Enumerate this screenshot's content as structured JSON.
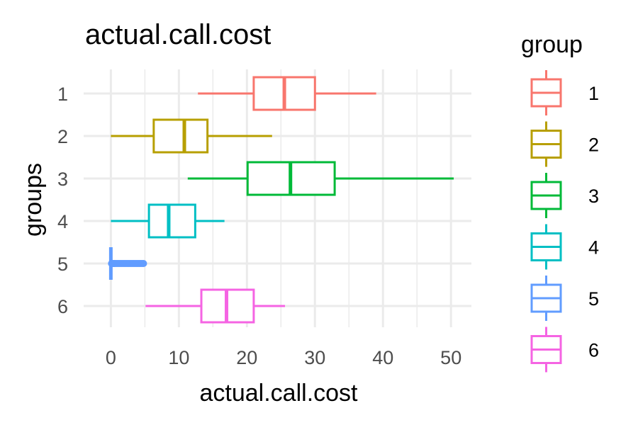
{
  "chart_data": {
    "type": "boxplot",
    "orientation": "horizontal",
    "title": "actual.call.cost",
    "xlabel": "actual.call.cost",
    "ylabel": "groups",
    "xlim": [
      -4,
      53
    ],
    "x_ticks": [
      0,
      10,
      20,
      30,
      40,
      50
    ],
    "categories": [
      "1",
      "2",
      "3",
      "4",
      "5",
      "6"
    ],
    "grid": true,
    "legend": {
      "title": "group",
      "placement": "right"
    },
    "series": [
      {
        "name": "1",
        "color": "#F8766D",
        "whisker_low": 12.8,
        "q1": 21.0,
        "median": 25.5,
        "q3": 30.0,
        "whisker_high": 39.0,
        "outliers": []
      },
      {
        "name": "2",
        "color": "#B79F00",
        "whisker_low": 0.0,
        "q1": 6.3,
        "median": 10.8,
        "q3": 14.2,
        "whisker_high": 23.7,
        "outliers": []
      },
      {
        "name": "3",
        "color": "#00BA38",
        "whisker_low": 11.3,
        "q1": 20.1,
        "median": 26.4,
        "q3": 32.9,
        "whisker_high": 50.4,
        "outliers": []
      },
      {
        "name": "4",
        "color": "#00BFC4",
        "whisker_low": 0.0,
        "q1": 5.6,
        "median": 8.5,
        "q3": 12.4,
        "whisker_high": 16.7,
        "outliers": []
      },
      {
        "name": "5",
        "color": "#619CFF",
        "whisker_low": 0.0,
        "q1": 0.0,
        "median": 0.0,
        "q3": 0.0,
        "whisker_high": 0.0,
        "outliers": [
          0.1,
          0.2,
          0.3,
          0.4,
          0.5,
          0.6,
          0.8,
          1.0,
          1.2,
          1.4,
          1.6,
          1.8,
          2.0,
          2.2,
          2.4,
          2.6,
          2.8,
          3.0,
          3.2,
          3.4,
          3.6,
          3.8,
          4.0,
          4.2,
          4.4,
          4.6,
          4.8
        ]
      },
      {
        "name": "6",
        "color": "#F564E3",
        "whisker_low": 5.1,
        "q1": 13.3,
        "median": 17.0,
        "q3": 21.0,
        "whisker_high": 25.6,
        "outliers": []
      }
    ]
  }
}
